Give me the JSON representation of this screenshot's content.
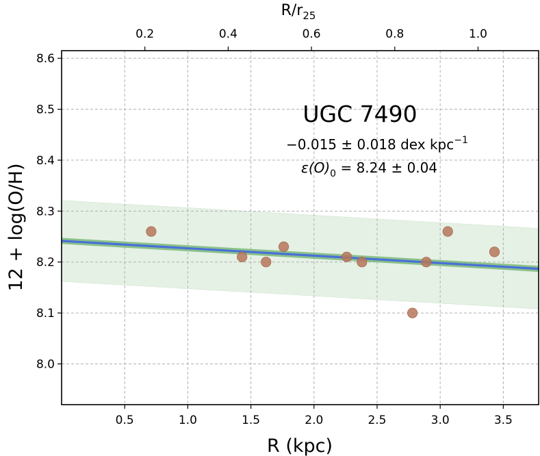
{
  "chart_data": {
    "type": "scatter",
    "title": "UGC 7490",
    "xlabel": "R (kpc)",
    "ylabel": "12 + log(O/H)",
    "top_xlabel": "R/r",
    "top_xlabel_sub": "25",
    "xlim": [
      0.0,
      3.78
    ],
    "ylim": [
      7.92,
      8.615
    ],
    "grid": true,
    "x_ticks": [
      "0.5",
      "1.0",
      "1.5",
      "2.0",
      "2.5",
      "3.0",
      "3.5"
    ],
    "y_ticks": [
      "8.0",
      "8.1",
      "8.2",
      "8.3",
      "8.4",
      "8.5",
      "8.6"
    ],
    "top_ticks": {
      "labels": [
        "0.2",
        "0.4",
        "0.6",
        "0.8",
        "1.0"
      ],
      "kpc_positions": [
        0.66,
        1.32,
        1.98,
        2.64,
        3.3
      ]
    },
    "points": [
      {
        "x": 0.71,
        "y": 8.26
      },
      {
        "x": 1.43,
        "y": 8.21
      },
      {
        "x": 1.62,
        "y": 8.2
      },
      {
        "x": 1.76,
        "y": 8.23
      },
      {
        "x": 2.26,
        "y": 8.21
      },
      {
        "x": 2.38,
        "y": 8.2
      },
      {
        "x": 2.78,
        "y": 8.1
      },
      {
        "x": 2.89,
        "y": 8.2
      },
      {
        "x": 3.06,
        "y": 8.26
      },
      {
        "x": 3.43,
        "y": 8.22
      }
    ],
    "fit": {
      "intercept": 8.2415,
      "slope": -0.0145
    },
    "fit_band_halfwidth": 0.006,
    "scatter_band": {
      "y0_low": 8.162,
      "y0_high": 8.321,
      "y1_low": 8.108,
      "y1_high": 8.266
    },
    "annotation": {
      "gradient": "−0.015 ± 0.018 dex kpc",
      "gradient_sup": "−1",
      "eps_symbol": "ε",
      "eps_open": "(O)",
      "eps_sub": "0",
      "eps_value": " = 8.24 ± 0.04"
    },
    "colors": {
      "point": "#b6775c",
      "fit_line": "#4a6fd8",
      "fit_band": "#7ab87a",
      "scatter_band": "#dcecdc",
      "grid": "#b0b0b0"
    }
  }
}
